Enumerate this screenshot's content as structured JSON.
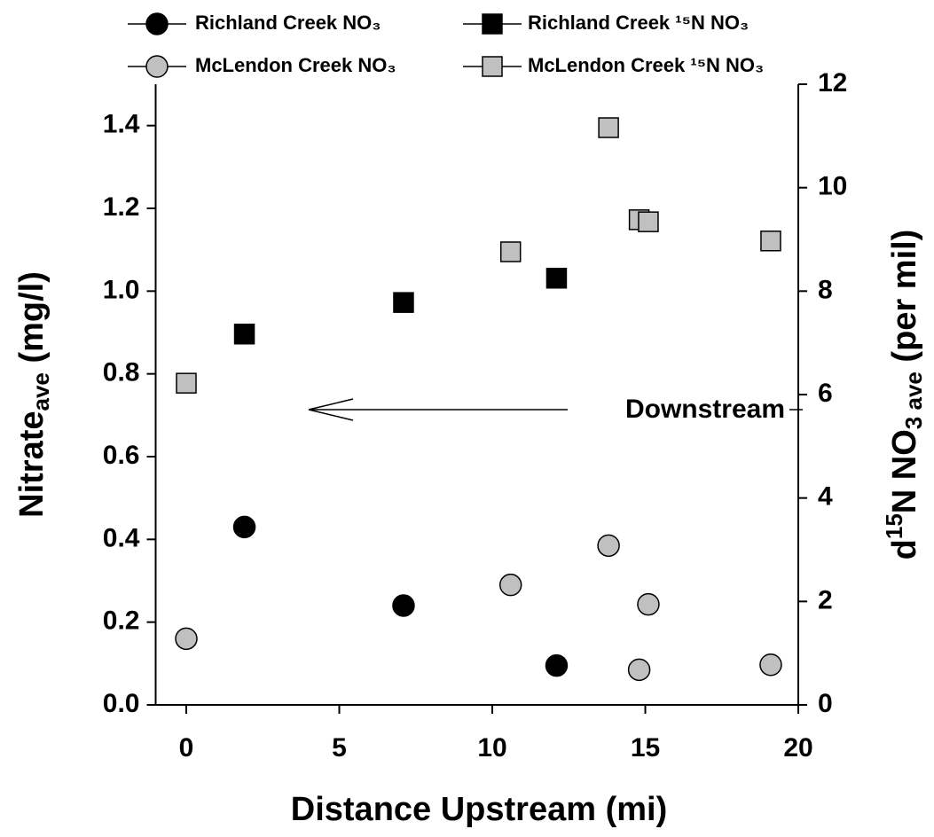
{
  "chart_data": {
    "type": "scatter",
    "xlabel": "Distance Upstream (mi)",
    "ylabel": [
      "Nitrate",
      "ave",
      " (mg/l)"
    ],
    "y2label": [
      "d",
      "15",
      "N NO",
      "3 ave",
      " (per mil)"
    ],
    "annotation": "Downstream",
    "xlim": [
      -1,
      20
    ],
    "xticks": [
      0,
      5,
      10,
      15,
      20
    ],
    "ylim": [
      0,
      1.5
    ],
    "yticks": [
      {
        "value": 0,
        "label": "0.0"
      },
      0.2,
      0.4,
      0.6,
      0.8,
      {
        "value": 1,
        "label": "1.0"
      },
      1.2,
      1.4
    ],
    "y2lim": [
      0,
      12
    ],
    "y2ticks": [
      0,
      2,
      4,
      6,
      8,
      10,
      12
    ],
    "series": [
      {
        "name": "Richland Creek NO₃",
        "color": "#000000",
        "marker": "circle",
        "x": [
          1.9,
          7.1,
          12.1
        ],
        "values": [
          0.43,
          0.24,
          0.095
        ]
      },
      {
        "name": "Richland Creek ¹⁵N NO₃",
        "color": "#000000",
        "marker": "square",
        "axis": "y2",
        "x": [
          1.9,
          7.1,
          12.1
        ],
        "values": [
          7.17,
          7.78,
          8.25
        ]
      },
      {
        "name": "McLendon Creek NO₃",
        "color": "#c0c0c0",
        "marker": "circle",
        "x": [
          0,
          10.6,
          13.8,
          14.8,
          15.1,
          19.1
        ],
        "values": [
          0.16,
          0.29,
          0.385,
          0.085,
          0.243,
          0.097
        ]
      },
      {
        "name": "McLendon Creek ¹⁵N NO₃",
        "color": "#c0c0c0",
        "marker": "square",
        "axis": "y2",
        "x": [
          0,
          10.6,
          13.8,
          14.8,
          15.1,
          19.1
        ],
        "values": [
          6.22,
          8.76,
          11.16,
          9.38,
          9.34,
          8.97
        ]
      }
    ]
  }
}
